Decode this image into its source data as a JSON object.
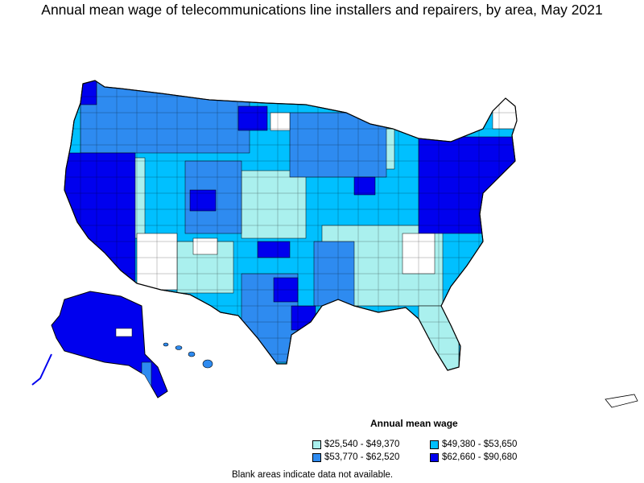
{
  "title": "Annual mean wage of telecommunications line installers and repairers, by area, May 2021",
  "legend": {
    "title": "Annual mean wage",
    "bins": [
      {
        "label": "$25,540 - $49,370",
        "color": "#aaf0ee"
      },
      {
        "label": "$49,380 - $53,650",
        "color": "#00c0ff"
      },
      {
        "label": "$53,770 - $62,520",
        "color": "#2e8bf0"
      },
      {
        "label": "$62,660 - $90,680",
        "color": "#0000ee"
      }
    ]
  },
  "footnote": "Blank areas indicate data not available.",
  "colors": {
    "no_data": "#ffffff",
    "border": "#000000"
  }
}
